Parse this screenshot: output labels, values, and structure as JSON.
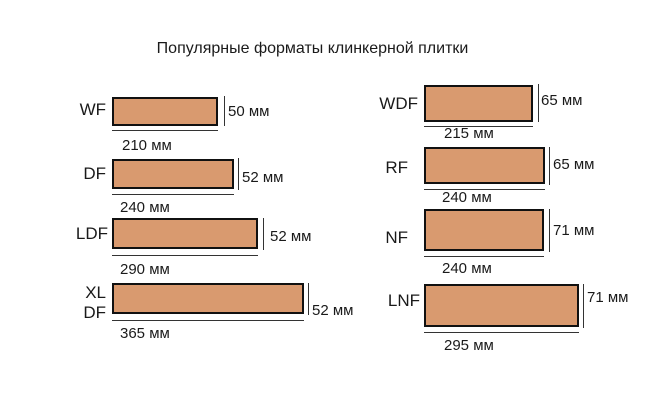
{
  "title": "Популярные форматы клинкерной плитки",
  "colors": {
    "tile_fill": "#d99a6f",
    "tile_border": "#111111"
  },
  "formats": [
    {
      "name": "WF",
      "length": "210 мм",
      "height": "50 мм"
    },
    {
      "name": "DF",
      "length": "240 мм",
      "height": "52 мм"
    },
    {
      "name": "LDF",
      "length": "290 мм",
      "height": "52 мм"
    },
    {
      "name_line1": "XL",
      "name_line2": "DF",
      "length": "365 мм",
      "height": "52 мм"
    },
    {
      "name": "WDF",
      "length": "215 мм",
      "height": "65 мм"
    },
    {
      "name": "RF",
      "length": "240 мм",
      "height": "65 мм"
    },
    {
      "name": "NF",
      "length": "240 мм",
      "height": "71 мм"
    },
    {
      "name": "LNF",
      "length": "295 мм",
      "height": "71 мм"
    }
  ]
}
